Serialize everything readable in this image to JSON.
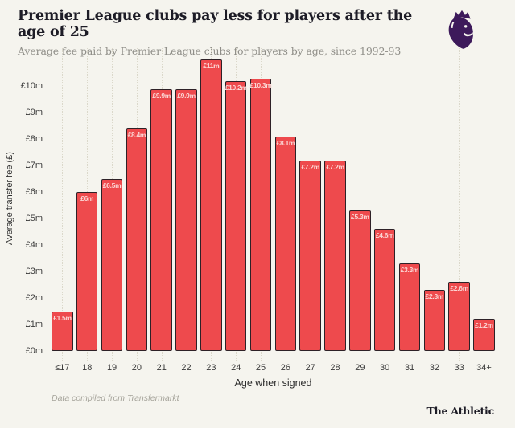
{
  "header": {
    "title": "Premier League clubs pay less for players after the age of 25",
    "subtitle": "Average fee paid by Premier League clubs for players by age, since 1992-93"
  },
  "logo": {
    "name": "premier-league-lion",
    "color": "#3d1a5b"
  },
  "chart_data": {
    "type": "bar",
    "title": "Premier League clubs pay less for players after the age of 25",
    "subtitle": "Average fee paid by Premier League clubs for players by age, since 1992-93",
    "categories": [
      "≤17",
      "18",
      "19",
      "20",
      "21",
      "22",
      "23",
      "24",
      "25",
      "26",
      "27",
      "28",
      "29",
      "30",
      "31",
      "32",
      "33",
      "34+"
    ],
    "values": [
      1.5,
      6,
      6.5,
      8.4,
      9.9,
      9.9,
      11,
      10.2,
      10.3,
      8.1,
      7.2,
      7.2,
      5.3,
      4.6,
      3.3,
      2.3,
      2.6,
      1.2
    ],
    "bar_labels": [
      "£1.5m",
      "£6m",
      "£6.5m",
      "£8.4m",
      "£9.9m",
      "£9.9m",
      "£11m",
      "£10.2m",
      "£10.3m",
      "£8.1m",
      "£7.2m",
      "£7.2m",
      "£5.3m",
      "£4.6m",
      "£3.3m",
      "£2.3m",
      "£2.6m",
      "£1.2m"
    ],
    "xlabel": "Age when signed",
    "ylabel": "Average transfer fee (£)",
    "yticks": [
      "£0m",
      "£1m",
      "£2m",
      "£3m",
      "£4m",
      "£5m",
      "£6m",
      "£7m",
      "£8m",
      "£9m",
      "£10m"
    ],
    "ylim": [
      0,
      11.5
    ],
    "grid": "vertical-dotted",
    "legend": "none",
    "bar_color": "#ee4a4d",
    "bar_border_color": "#2e2127",
    "bar_label_color": "#fbd7d5",
    "background_color": "#f5f4ee"
  },
  "footer": {
    "source": "Data compiled from Transfermarkt",
    "brand": "The Athletic"
  }
}
